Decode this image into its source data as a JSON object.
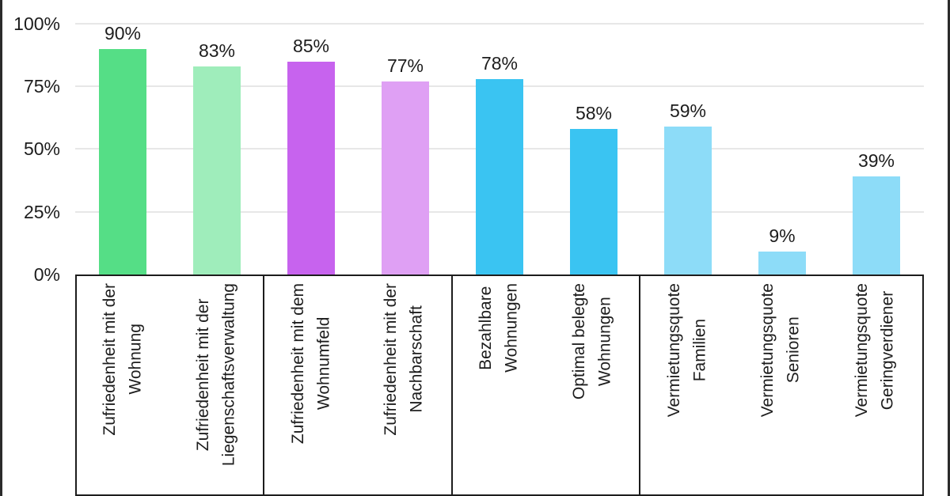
{
  "chart_data": {
    "type": "bar",
    "title": "",
    "xlabel": "",
    "ylabel": "",
    "ylim": [
      0,
      100
    ],
    "grid": true,
    "legend": "none",
    "yticks": [
      {
        "value": 100,
        "label": "100%"
      },
      {
        "value": 75,
        "label": "75%"
      },
      {
        "value": 50,
        "label": "50%"
      },
      {
        "value": 25,
        "label": "25%"
      },
      {
        "value": 0,
        "label": "0%"
      }
    ],
    "groups": [
      {
        "bars": [
          {
            "label": "Zufriedenheit mit der\nWohnung",
            "value": 90,
            "display": "90%",
            "color": "#55DE86"
          },
          {
            "label": "Zufriedenheit mit der\nLiegenschaftsverwaltung",
            "value": 83,
            "display": "83%",
            "color": "#9FEDBB"
          }
        ]
      },
      {
        "bars": [
          {
            "label": "Zufriedenheit mit dem\nWohnumfeld",
            "value": 85,
            "display": "85%",
            "color": "#C763EE"
          },
          {
            "label": "Zufriedenheit mit der\nNachbarschaft",
            "value": 77,
            "display": "77%",
            "color": "#DFA0F4"
          }
        ]
      },
      {
        "bars": [
          {
            "label": "Bezahlbare\nWohnungen",
            "value": 78,
            "display": "78%",
            "color": "#3AC4F2"
          },
          {
            "label": "Optimal belegte\nWohnungen",
            "value": 58,
            "display": "58%",
            "color": "#3AC4F2"
          }
        ]
      },
      {
        "bars": [
          {
            "label": "Vermietungsquote\nFamilien",
            "value": 59,
            "display": "59%",
            "color": "#8DDCF8"
          },
          {
            "label": "Vermietungsquote\nSenioren",
            "value": 9,
            "display": "9%",
            "color": "#8DDCF8"
          },
          {
            "label": "Vermietungsquote\nGeringverdiener",
            "value": 39,
            "display": "39%",
            "color": "#8DDCF8"
          }
        ]
      }
    ]
  },
  "colors": {
    "green": "#55DE86",
    "green_light": "#9FEDBB",
    "purple": "#C763EE",
    "purple_light": "#DFA0F4",
    "blue": "#3AC4F2",
    "blue_light": "#8DDCF8",
    "gridline": "#E7E7E7",
    "axis_border": "#1D1D1D",
    "text": "#1D1D1D"
  }
}
